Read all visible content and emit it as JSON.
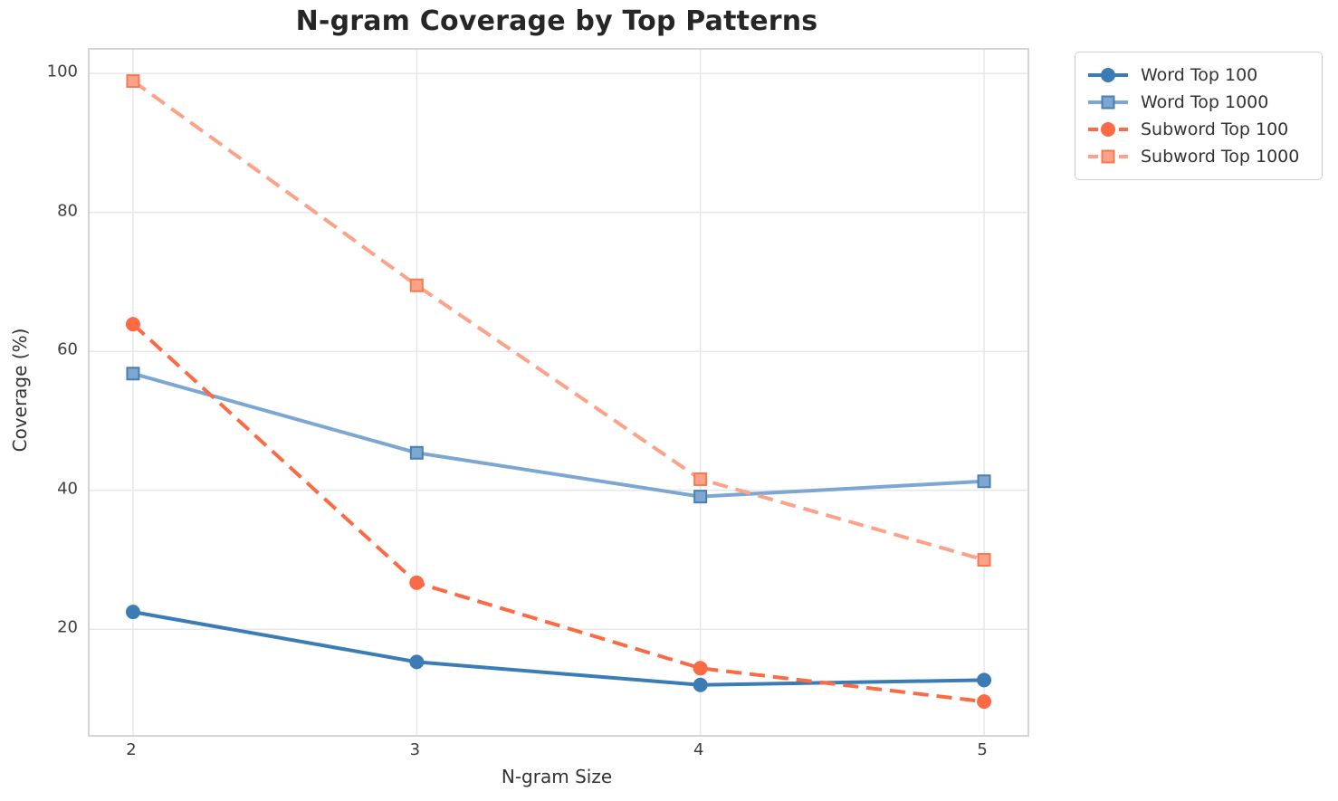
{
  "chart_data": {
    "type": "line",
    "title": "N-gram Coverage by Top Patterns",
    "xlabel": "N-gram Size",
    "ylabel": "Coverage (%)",
    "x": [
      2,
      3,
      4,
      5
    ],
    "series": [
      {
        "name": "Word Top 100",
        "values": [
          22.5,
          15.3,
          12.0,
          12.7
        ],
        "color": "#3b7cb4",
        "marker": "circle",
        "marker_edge": "#3b7cb4",
        "dashed": false
      },
      {
        "name": "Word Top 1000",
        "values": [
          56.8,
          45.4,
          39.1,
          41.3
        ],
        "color": "#7ba7d2",
        "marker": "square",
        "marker_edge": "#4a7fae",
        "dashed": false
      },
      {
        "name": "Subword Top 100",
        "values": [
          63.9,
          26.7,
          14.4,
          9.6
        ],
        "color": "#fa6a44",
        "marker": "circle",
        "marker_edge": "#fa6a44",
        "dashed": true
      },
      {
        "name": "Subword Top 1000",
        "values": [
          98.9,
          69.5,
          41.6,
          30.0
        ],
        "color": "#fba288",
        "marker": "square",
        "marker_edge": "#f57a52",
        "dashed": true
      }
    ],
    "xticks": [
      2,
      3,
      4,
      5
    ],
    "yticks": [
      20,
      40,
      60,
      80,
      100
    ],
    "xlim": [
      1.847,
      5.153
    ],
    "ylim": [
      4.8,
      103.4
    ],
    "grid": true,
    "legend_position": "outside-upper-right"
  },
  "style": {
    "grid_color": "#e8e8ec",
    "spine_color": "#d4d4da",
    "title_color": "#262626",
    "tick_color": "#3d3d3d",
    "line_width": 4,
    "dash_pattern": "17 9"
  }
}
